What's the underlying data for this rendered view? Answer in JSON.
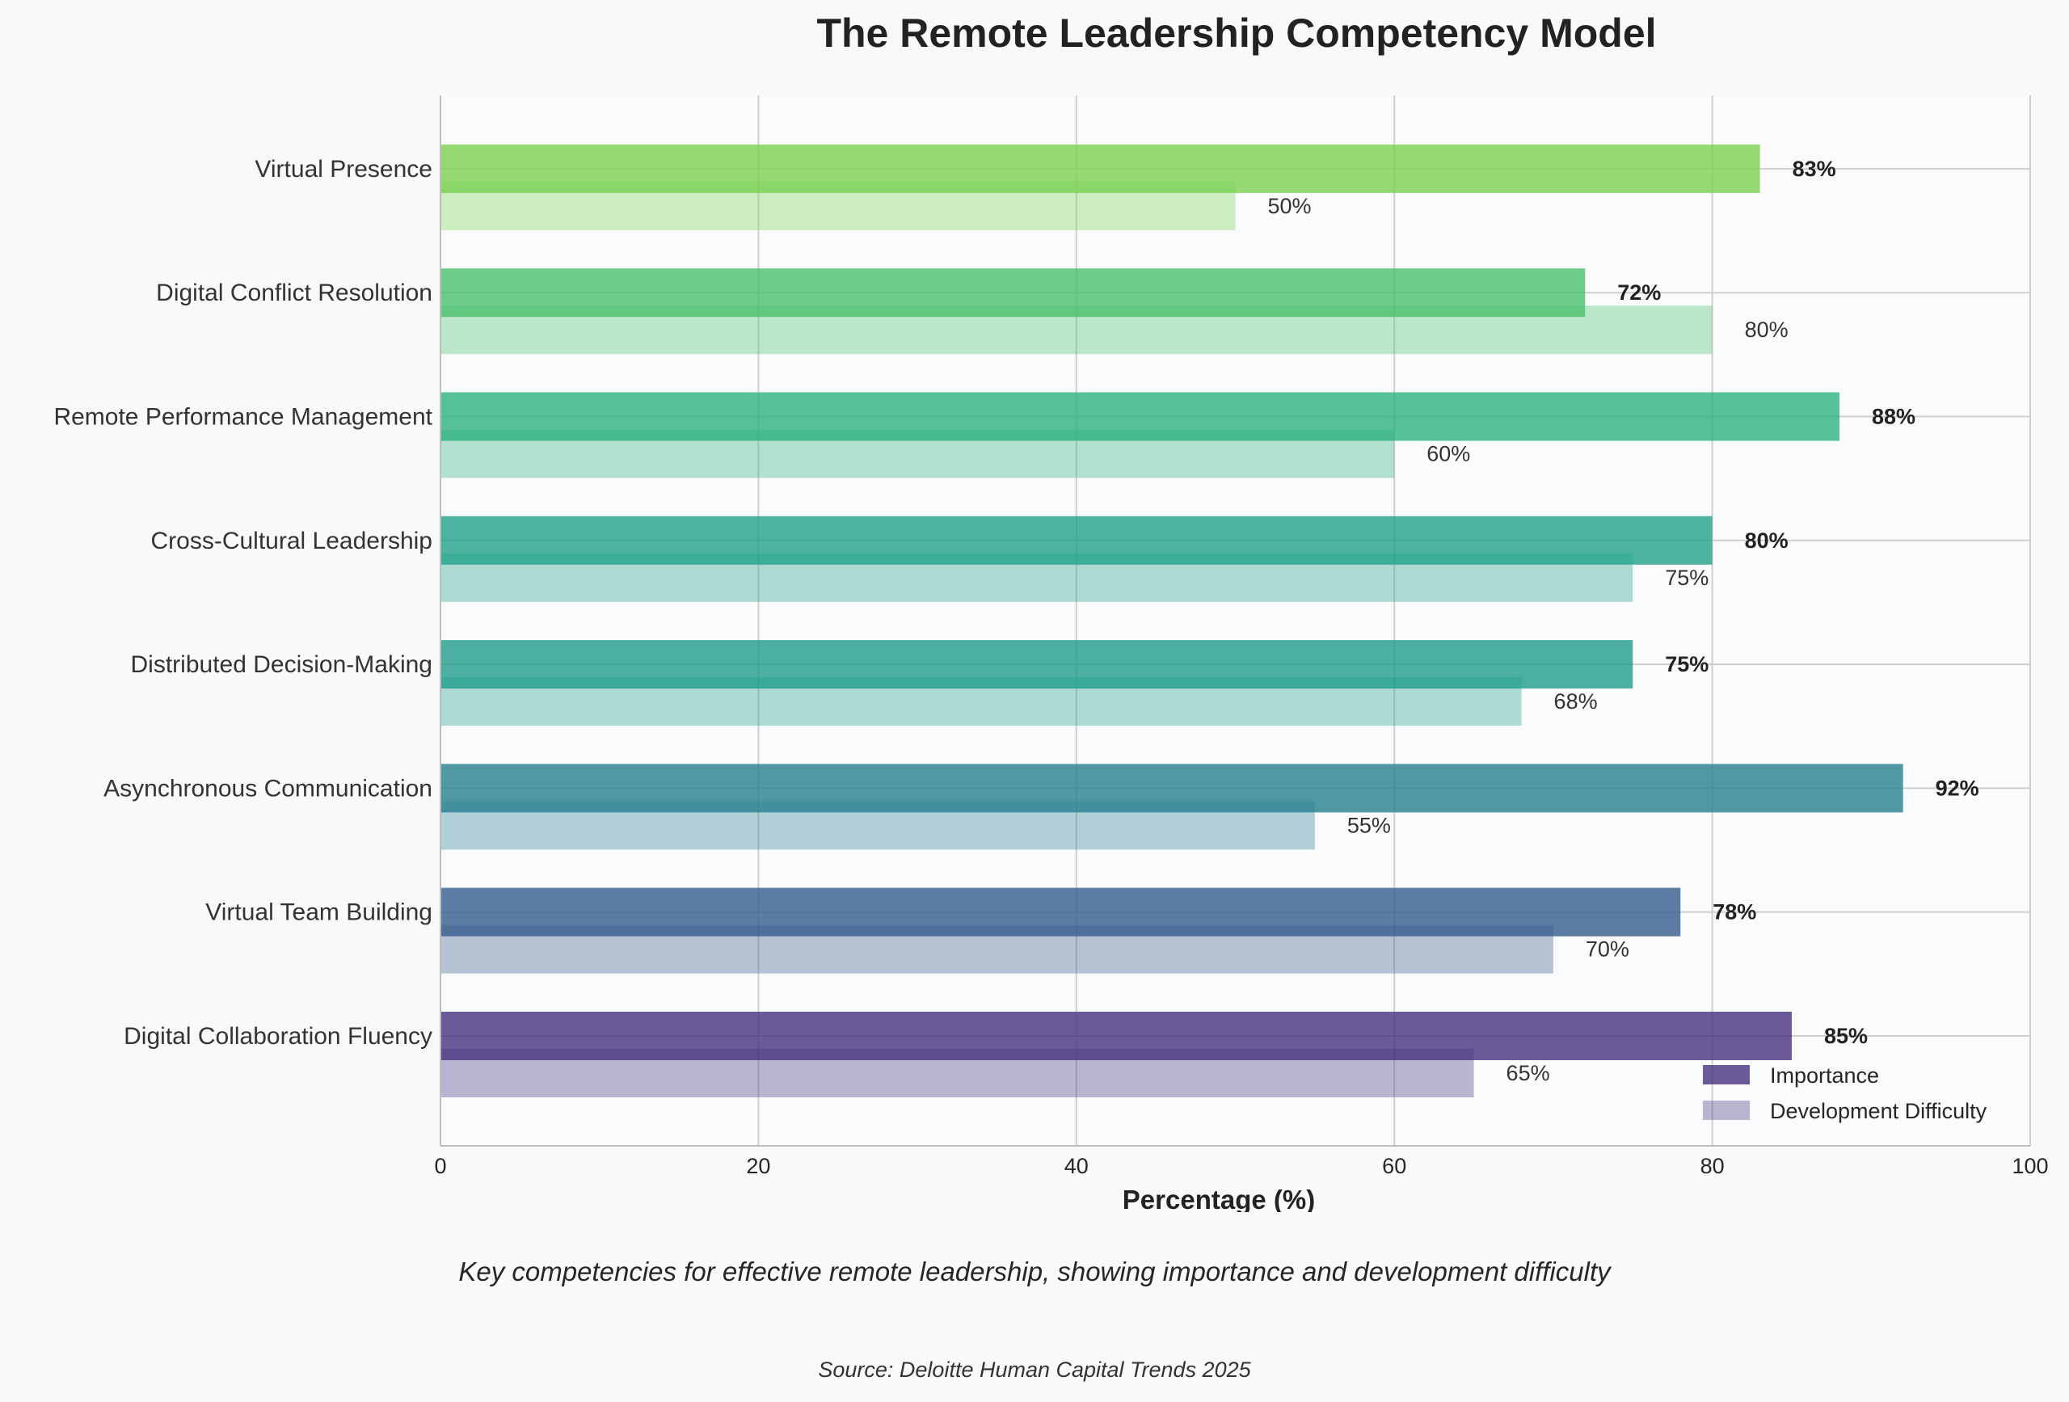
{
  "chart_data": {
    "type": "bar",
    "orientation": "horizontal",
    "title": "The Remote Leadership Competency Model",
    "xlabel": "Percentage (%)",
    "ylabel": "",
    "xlim": [
      0,
      100
    ],
    "xticks": [
      "0",
      "20",
      "40",
      "60",
      "80",
      "100"
    ],
    "grid": true,
    "legend_position": "lower-right",
    "categories": [
      "Digital Collaboration Fluency",
      "Virtual Team Building",
      "Asynchronous Communication",
      "Distributed Decision-Making",
      "Cross-Cultural Leadership",
      "Remote Performance Management",
      "Digital Conflict Resolution",
      "Virtual Presence"
    ],
    "series": [
      {
        "name": "Importance",
        "values": [
          85,
          78,
          92,
          75,
          80,
          88,
          72,
          83
        ],
        "labels": [
          "85%",
          "78%",
          "92%",
          "75%",
          "80%",
          "88%",
          "72%",
          "83%"
        ]
      },
      {
        "name": "Development Difficulty",
        "values": [
          65,
          70,
          55,
          68,
          75,
          60,
          80,
          50
        ],
        "labels": [
          "65%",
          "70%",
          "55%",
          "68%",
          "75%",
          "60%",
          "80%",
          "50%"
        ]
      }
    ],
    "colors": [
      "#46327e",
      "#365c8d",
      "#277f8e",
      "#1f9e89",
      "#1fa187",
      "#2db27d",
      "#4ac16d",
      "#7ad151"
    ],
    "legend_colors": [
      "#46327e",
      "#9fa0c6"
    ]
  },
  "caption": "Key competencies for effective remote leadership, showing importance and development difficulty",
  "source": "Source: Deloitte Human Capital Trends 2025"
}
